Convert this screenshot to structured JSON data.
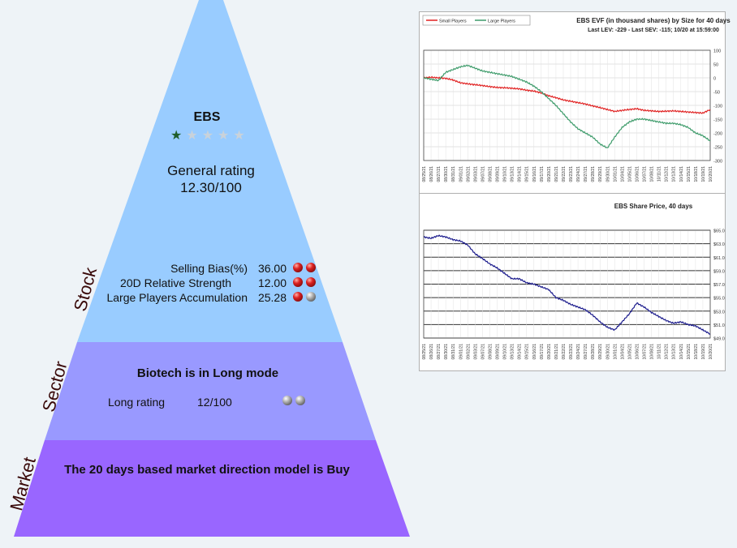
{
  "stock": {
    "ticker": "EBS",
    "stars_filled": 1,
    "stars_total": 5,
    "rating_label": "General rating",
    "rating_value": "12.30/100",
    "side_label": "Stock",
    "metrics": [
      {
        "label": "Selling Bias(%)",
        "value": "36.00",
        "balls": [
          "red",
          "red"
        ]
      },
      {
        "label": "20D Relative Strength",
        "value": "12.00",
        "balls": [
          "red",
          "red"
        ]
      },
      {
        "label": "Large Players Accumulation",
        "value": "25.28",
        "balls": [
          "red",
          "gray"
        ]
      }
    ]
  },
  "sector": {
    "side_label": "Sector",
    "title": "Biotech is in Long mode",
    "rating_label": "Long rating",
    "rating_value": "12/100",
    "balls": [
      "gray",
      "gray"
    ]
  },
  "market": {
    "side_label": "Market",
    "title": "The 20 days based market direction model is Buy"
  },
  "colors": {
    "stock": "#99ccff",
    "sector": "#9999ff",
    "market": "#9966ff",
    "small_players": "#e02020",
    "large_players": "#3d9b6a",
    "price": "#1a1a8c"
  },
  "dates": [
    "08/25/21",
    "08/26/21",
    "08/27/21",
    "08/30/21",
    "08/31/21",
    "09/01/21",
    "09/02/21",
    "09/03/21",
    "09/07/21",
    "09/08/21",
    "09/09/21",
    "09/10/21",
    "09/13/21",
    "09/14/21",
    "09/15/21",
    "09/16/21",
    "09/17/21",
    "09/20/21",
    "09/21/21",
    "09/22/21",
    "09/23/21",
    "09/24/21",
    "09/27/21",
    "09/28/21",
    "09/29/21",
    "09/30/21",
    "10/01/21",
    "10/04/21",
    "10/05/21",
    "10/06/21",
    "10/07/21",
    "10/08/21",
    "10/11/21",
    "10/12/21",
    "10/13/21",
    "10/14/21",
    "10/15/21",
    "10/18/21",
    "10/19/21",
    "10/20/21"
  ],
  "chart_data": [
    {
      "type": "line",
      "title": "EBS EVF (in thousand shares) by Size for 40 days",
      "subtitle": "Last LEV: -229 - Last SEV: -115; 10/20 at 15:59:00",
      "legend_position": "top-left",
      "grid": true,
      "ylim": [
        -300,
        100
      ],
      "yticks": [
        "100",
        "50",
        "0",
        "-50",
        "-100",
        "-150",
        "-200",
        "-250",
        "-300"
      ],
      "series": [
        {
          "name": "Small Players",
          "color": "#e02020",
          "values": [
            0,
            2,
            0,
            -2,
            -8,
            -18,
            -22,
            -25,
            -28,
            -32,
            -35,
            -36,
            -38,
            -40,
            -45,
            -48,
            -55,
            -65,
            -72,
            -80,
            -85,
            -90,
            -95,
            -102,
            -108,
            -115,
            -122,
            -118,
            -115,
            -112,
            -118,
            -120,
            -122,
            -121,
            -120,
            -122,
            -124,
            -126,
            -128,
            -115
          ]
        },
        {
          "name": "Large Players",
          "color": "#3d9b6a",
          "values": [
            0,
            -5,
            -10,
            20,
            30,
            40,
            45,
            35,
            25,
            20,
            15,
            10,
            5,
            -5,
            -15,
            -30,
            -50,
            -75,
            -100,
            -130,
            -160,
            -185,
            -200,
            -215,
            -240,
            -255,
            -215,
            -180,
            -160,
            -150,
            -150,
            -155,
            -160,
            -165,
            -165,
            -170,
            -180,
            -200,
            -210,
            -229
          ]
        }
      ]
    },
    {
      "type": "line",
      "title": "EBS Share Price, 40 days",
      "grid": true,
      "ylim": [
        49.0,
        65.0
      ],
      "yticks": [
        "$65.0",
        "$63.0",
        "$61.0",
        "$59.0",
        "$57.0",
        "$55.0",
        "$53.0",
        "$51.0",
        "$49.0"
      ],
      "series": [
        {
          "name": "",
          "color": "#1a1a8c",
          "values": [
            64.0,
            63.8,
            64.2,
            64.0,
            63.6,
            63.4,
            62.8,
            61.5,
            60.8,
            60.0,
            59.4,
            58.6,
            57.8,
            57.8,
            57.2,
            57.0,
            56.6,
            56.2,
            55.0,
            54.6,
            54.0,
            53.6,
            53.2,
            52.4,
            51.4,
            50.6,
            50.2,
            51.4,
            52.6,
            54.2,
            53.6,
            52.8,
            52.2,
            51.6,
            51.2,
            51.4,
            51.0,
            50.8,
            50.2,
            49.6
          ]
        }
      ]
    }
  ]
}
